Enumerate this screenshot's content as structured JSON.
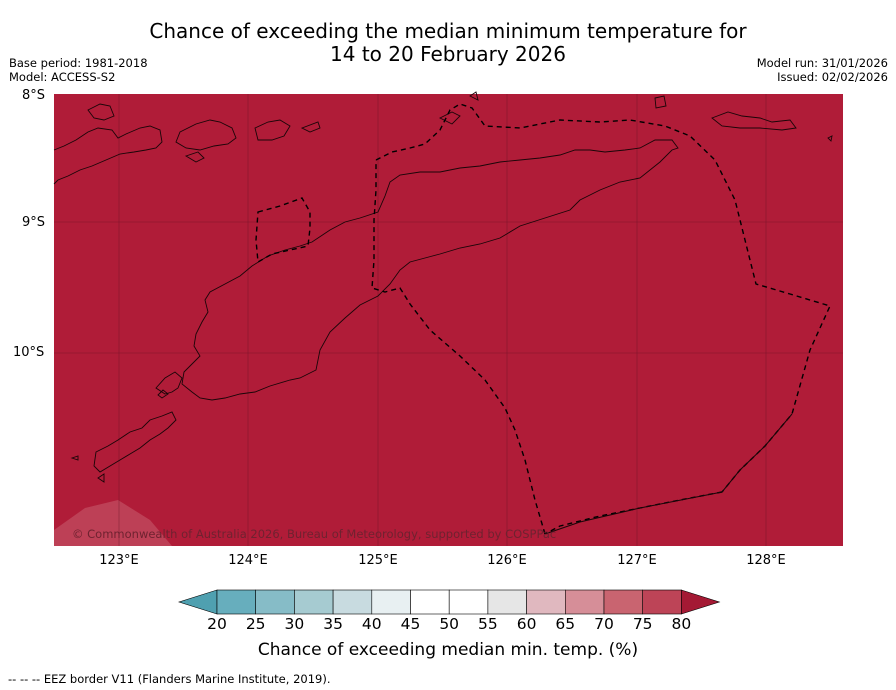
{
  "title_line1": "Chance of exceeding the median minimum temperature for",
  "title_line2": "14 to 20 February 2026",
  "meta_left": {
    "line1": "Base period: 1981-2018",
    "line2": "Model: ACCESS-S2"
  },
  "meta_right": {
    "line1": "Model run: 31/01/2026",
    "line2": "Issued: 02/02/2026"
  },
  "lat_labels": [
    "8°S",
    "9°S",
    "10°S"
  ],
  "lon_labels": [
    "123°E",
    "124°E",
    "125°E",
    "126°E",
    "127°E",
    "128°E"
  ],
  "copyright": "© Commonwealth of Australia 2026, Bureau of Meteorology, supported by COSPPac",
  "colorbar": {
    "label": "Chance of exceeding median min. temp. (%)",
    "ticks": [
      "20",
      "25",
      "30",
      "35",
      "40",
      "45",
      "50",
      "55",
      "60",
      "65",
      "70",
      "75",
      "80"
    ],
    "colors": [
      "#4fa0b0",
      "#67aebd",
      "#86bcc7",
      "#a6cbd1",
      "#c8dbe0",
      "#e8f0f2",
      "#ffffff",
      "#ffffff",
      "#e6e6e6",
      "#e0b8bf",
      "#d68e98",
      "#c96470",
      "#bd4457",
      "#a41934"
    ],
    "field_color": "#b01c38"
  },
  "footer": "--  --  -- EEZ border V11 (Flanders Marine Institute, 2019)."
}
